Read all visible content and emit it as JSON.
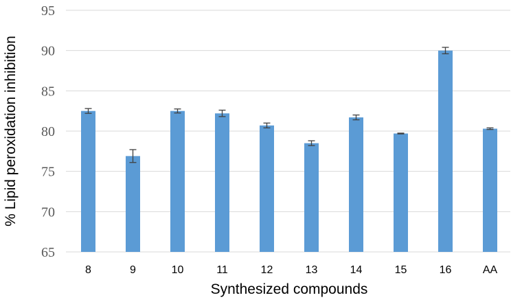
{
  "chart_data": {
    "type": "bar",
    "title": "",
    "xlabel": "Synthesized compounds",
    "ylabel": "% Lipid peroxidation inhibition",
    "categories": [
      "8",
      "9",
      "10",
      "11",
      "12",
      "13",
      "14",
      "15",
      "16",
      "AA"
    ],
    "values": [
      82.5,
      76.9,
      82.5,
      82.2,
      80.7,
      78.5,
      81.7,
      79.7,
      90.0,
      80.3
    ],
    "errors": [
      0.3,
      0.8,
      0.25,
      0.4,
      0.3,
      0.3,
      0.3,
      0.05,
      0.4,
      0.1
    ],
    "ylim": [
      65,
      95
    ],
    "yticks": [
      65,
      70,
      75,
      80,
      85,
      90,
      95
    ],
    "grid": true,
    "legend": "none",
    "colors": {
      "bar": "#5B9BD5",
      "gridline": "#D9D9D9",
      "error_bar": "#404040"
    }
  }
}
